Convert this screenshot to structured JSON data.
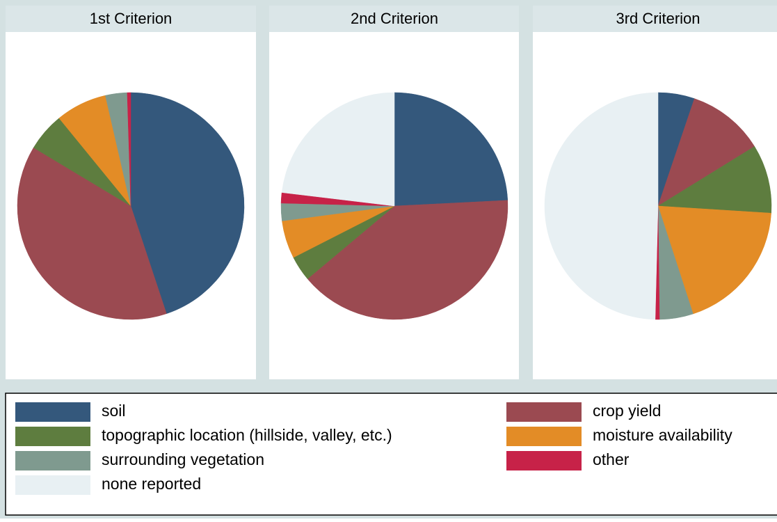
{
  "chart_data": [
    {
      "type": "pie",
      "title": "1st Criterion",
      "values": [
        44.9,
        38.7,
        5.5,
        7.3,
        3.1,
        0.5,
        0
      ]
    },
    {
      "type": "pie",
      "title": "2nd Criterion",
      "values": [
        24.2,
        39.7,
        3.6,
        5.4,
        2.5,
        1.5,
        23.1
      ]
    },
    {
      "type": "pie",
      "title": "3rd Criterion",
      "values": [
        5.2,
        11.0,
        9.8,
        19.0,
        4.8,
        0.6,
        49.6
      ]
    }
  ],
  "legend": {
    "labels": [
      "soil",
      "crop yield",
      "topographic location (hillside, valley, etc.)",
      "moisture availability",
      "surrounding vegetation",
      "other",
      "none reported"
    ],
    "colors": [
      "#34587c",
      "#9b4a51",
      "#5e7d3f",
      "#e38c26",
      "#7f9a8f",
      "#c72248",
      "#e8f0f3"
    ]
  }
}
